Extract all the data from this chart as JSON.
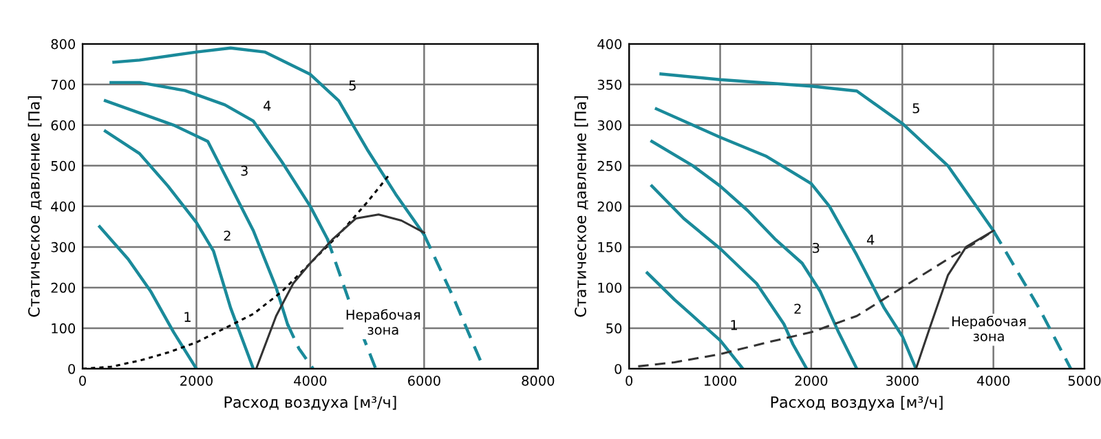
{
  "chart_data": [
    {
      "type": "line",
      "xlabel": "Расход воздуха [м³/ч]",
      "ylabel": "Статическое давление [Па]",
      "xlim": [
        0,
        8000
      ],
      "xticks": [
        0,
        2000,
        4000,
        6000,
        8000
      ],
      "ylim": [
        0,
        800
      ],
      "yticks": [
        0,
        100,
        200,
        300,
        400,
        500,
        600,
        700,
        800
      ],
      "grid": true,
      "legend": false,
      "marker": "none",
      "series": [
        {
          "name": "1",
          "color": "#1a8a9a",
          "line_style": "solid",
          "x": [
            300,
            800,
            1200,
            1600,
            2000
          ],
          "values": [
            350,
            270,
            190,
            90,
            0
          ]
        },
        {
          "name": "2",
          "color": "#1a8a9a",
          "line_style": "solid",
          "x": [
            400,
            1000,
            1500,
            2000,
            2300,
            2600,
            3000
          ],
          "values": [
            585,
            530,
            450,
            360,
            290,
            150,
            0
          ]
        },
        {
          "name": "3",
          "color": "#1a8a9a",
          "line_style": "solid",
          "x": [
            400,
            1000,
            1600,
            2200,
            2600,
            3000,
            3400,
            3600
          ],
          "values": [
            660,
            630,
            600,
            560,
            450,
            340,
            200,
            110
          ]
        },
        {
          "color": "#1a8a9a",
          "line_style": "dashed",
          "x": [
            3600,
            3800,
            4050
          ],
          "values": [
            110,
            50,
            0
          ]
        },
        {
          "name": "4",
          "color": "#1a8a9a",
          "line_style": "solid",
          "x": [
            500,
            1000,
            1800,
            2500,
            3000,
            3500,
            4000,
            4300
          ],
          "values": [
            705,
            705,
            685,
            650,
            610,
            510,
            400,
            320
          ]
        },
        {
          "color": "#1a8a9a",
          "line_style": "dashed",
          "x": [
            4300,
            4700,
            5150
          ],
          "values": [
            320,
            160,
            0
          ]
        },
        {
          "name": "5",
          "color": "#1a8a9a",
          "line_style": "solid",
          "x": [
            550,
            1000,
            2000,
            2600,
            3200,
            4000,
            4500,
            5000,
            5500,
            6000
          ],
          "values": [
            755,
            760,
            780,
            790,
            780,
            725,
            660,
            540,
            430,
            330
          ]
        },
        {
          "color": "#1a8a9a",
          "line_style": "dashed",
          "x": [
            6000,
            6500,
            7050
          ],
          "values": [
            330,
            180,
            0
          ]
        },
        {
          "color": "#000000",
          "line_style": "dotted",
          "x": [
            0,
            500,
            1000,
            1500,
            2000,
            2500,
            3000,
            3500,
            4000,
            4500,
            5000,
            5400
          ],
          "values": [
            0,
            5,
            20,
            40,
            65,
            100,
            135,
            190,
            260,
            330,
            410,
            480
          ]
        },
        {
          "color": "#333333",
          "line_style": "solid",
          "x": [
            3050,
            3400,
            3700,
            4000,
            4400,
            4800,
            5200,
            5600,
            6000
          ],
          "values": [
            0,
            130,
            210,
            260,
            320,
            370,
            380,
            365,
            335
          ]
        }
      ],
      "annotations": [
        "Нерабочая\nзона"
      ]
    },
    {
      "type": "line",
      "xlabel": "Расход воздуха [м³/ч]",
      "ylabel": "Статическое давление [Па]",
      "xlim": [
        0,
        5000
      ],
      "xticks": [
        0,
        1000,
        2000,
        3000,
        4000,
        5000
      ],
      "ylim": [
        0,
        400
      ],
      "yticks": [
        0,
        50,
        100,
        150,
        200,
        250,
        300,
        350,
        400
      ],
      "grid": true,
      "legend": false,
      "marker": "none",
      "series": [
        {
          "name": "1",
          "color": "#1a8a9a",
          "line_style": "solid",
          "x": [
            200,
            500,
            700,
            1000,
            1250
          ],
          "values": [
            118,
            85,
            65,
            35,
            0
          ]
        },
        {
          "name": "2",
          "color": "#1a8a9a",
          "line_style": "solid",
          "x": [
            250,
            600,
            1000,
            1400,
            1700,
            1800,
            1950
          ],
          "values": [
            225,
            185,
            148,
            105,
            55,
            30,
            0
          ]
        },
        {
          "name": "3",
          "color": "#1a8a9a",
          "line_style": "solid",
          "x": [
            250,
            700,
            1000,
            1300,
            1600,
            1900,
            2100,
            2300,
            2500
          ],
          "values": [
            280,
            250,
            225,
            195,
            160,
            130,
            95,
            45,
            0
          ]
        },
        {
          "name": "4",
          "color": "#1a8a9a",
          "line_style": "solid",
          "x": [
            300,
            700,
            1000,
            1500,
            2000,
            2200,
            2500,
            2800,
            3000,
            3150
          ],
          "values": [
            320,
            300,
            285,
            262,
            228,
            200,
            140,
            75,
            40,
            0
          ]
        },
        {
          "name": "5",
          "color": "#1a8a9a",
          "line_style": "solid",
          "x": [
            350,
            1000,
            2000,
            2500,
            3000,
            3500,
            4000
          ],
          "values": [
            363,
            356,
            348,
            342,
            302,
            250,
            170
          ]
        },
        {
          "color": "#1a8a9a",
          "line_style": "dashed",
          "x": [
            4000,
            4500,
            4850
          ],
          "values": [
            170,
            75,
            0
          ]
        },
        {
          "color": "#333333",
          "line_style": "dashed",
          "x": [
            100,
            500,
            1000,
            1500,
            2000,
            2500,
            3000,
            3500,
            3800,
            4000
          ],
          "values": [
            3,
            8,
            18,
            32,
            45,
            65,
            100,
            135,
            155,
            170
          ]
        },
        {
          "color": "#333333",
          "line_style": "solid",
          "x": [
            3150,
            3300,
            3500,
            3700,
            4000
          ],
          "values": [
            0,
            50,
            115,
            150,
            170
          ]
        }
      ],
      "annotations": [
        "Нерабочая\nзона"
      ]
    }
  ]
}
